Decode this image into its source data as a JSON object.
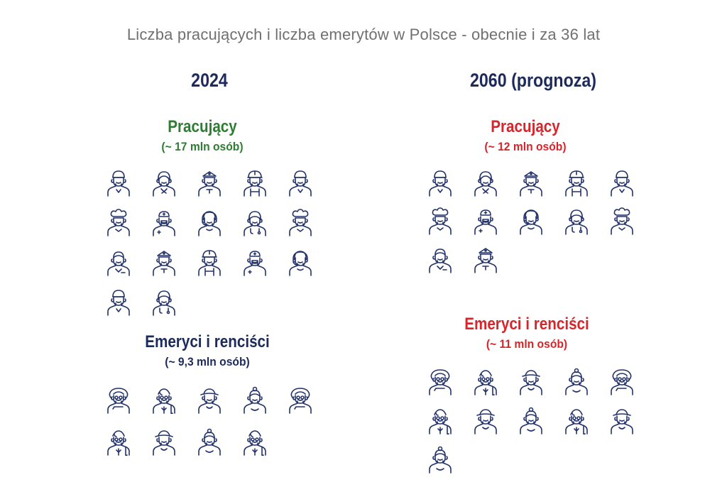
{
  "title": "Liczba pracujących i liczba emerytów w Polsce - obecnie i za 36 lat",
  "colors": {
    "navy": "#1c2a5c",
    "green": "#2e7d32",
    "red": "#d7262b",
    "icon": "#22326b",
    "title_gray": "#707070"
  },
  "chart_data": {
    "type": "pictograph",
    "title": "Liczba pracujących i liczba emerytów w Polsce - obecnie i za 36 lat",
    "panels": [
      {
        "year": "2024",
        "groups": [
          {
            "name": "Pracujący",
            "subtitle": "(~ 17 mln osób)",
            "value_mln": 17,
            "icon_count": 17,
            "color": "#2e7d32",
            "icons": [
              "worker-cap",
              "worker-woman",
              "worker-police",
              "worker-helmet",
              "worker-cap",
              "worker-chef",
              "worker-nurse",
              "worker-headset",
              "worker-doctor",
              "worker-chef",
              "worker-man",
              "worker-police",
              "worker-helmet",
              "worker-nurse",
              "worker-headset",
              "worker-cap",
              "worker-doctor"
            ]
          },
          {
            "name": "Emeryci i renciści",
            "subtitle": "(~ 9,3 mln osób)",
            "value_mln": 9.3,
            "icon_count": 9,
            "color": "#1c2a5c",
            "icons": [
              "senior-woman",
              "senior-man",
              "senior-hat",
              "senior-bun",
              "senior-woman",
              "senior-man",
              "senior-hat",
              "senior-bun",
              "senior-man"
            ]
          }
        ]
      },
      {
        "year": "2060 (prognoza)",
        "groups": [
          {
            "name": "Pracujący",
            "subtitle": "(~ 12 mln osób)",
            "value_mln": 12,
            "icon_count": 12,
            "color": "#d7262b",
            "icons": [
              "worker-cap",
              "worker-woman",
              "worker-police",
              "worker-helmet",
              "worker-cap",
              "worker-chef",
              "worker-nurse",
              "worker-headset",
              "worker-doctor",
              "worker-chef",
              "worker-man",
              "worker-police"
            ]
          },
          {
            "name": "Emeryci i renciści",
            "subtitle": "(~ 11 mln osób)",
            "value_mln": 11,
            "icon_count": 11,
            "color": "#d7262b",
            "icons": [
              "senior-woman",
              "senior-man",
              "senior-hat",
              "senior-bun",
              "senior-woman",
              "senior-man",
              "senior-hat",
              "senior-bun",
              "senior-man",
              "senior-hat",
              "senior-bun"
            ]
          }
        ]
      }
    ]
  }
}
